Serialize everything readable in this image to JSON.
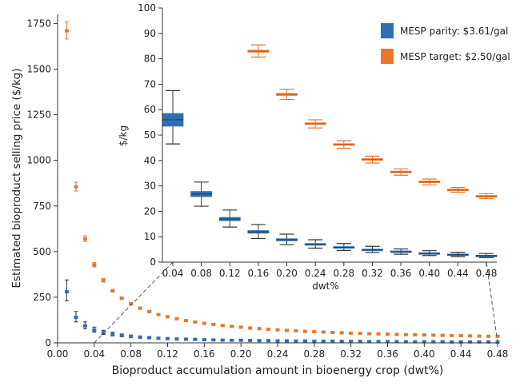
{
  "chart_data": [
    {
      "type": "scatter",
      "xlabel": "Bioproduct accumulation amount in bioenergy crop (dwt%)",
      "ylabel": "Estimated bioproduct selling price ($/kg)",
      "xlim": [
        0.0,
        0.48
      ],
      "ylim": [
        0,
        1800
      ],
      "xticks": [
        "0.00",
        "0.04",
        "0.08",
        "0.12",
        "0.16",
        "0.20",
        "0.24",
        "0.28",
        "0.32",
        "0.36",
        "0.40",
        "0.44",
        "0.48"
      ],
      "yticks": [
        "0",
        "250",
        "500",
        "750",
        "1000",
        "1250",
        "1500",
        "1750"
      ],
      "grid": false,
      "series": [
        {
          "name": "MESP parity: $3.61/gal",
          "color": "#2f6fb0",
          "x": [
            0.01,
            0.02,
            0.03,
            0.04,
            0.05,
            0.06,
            0.07,
            0.08,
            0.09,
            0.1,
            0.11,
            0.12,
            0.13,
            0.14,
            0.15,
            0.16,
            0.17,
            0.18,
            0.19,
            0.2,
            0.21,
            0.22,
            0.23,
            0.24,
            0.25,
            0.26,
            0.27,
            0.28,
            0.29,
            0.3,
            0.31,
            0.32,
            0.33,
            0.34,
            0.35,
            0.36,
            0.37,
            0.38,
            0.39,
            0.4,
            0.41,
            0.42,
            0.43,
            0.44,
            0.45,
            0.46,
            0.47,
            0.48
          ],
          "y": [
            280,
            140,
            93,
            70,
            56,
            47,
            40,
            35,
            31,
            28,
            25,
            23,
            21,
            20,
            19,
            17,
            16,
            15,
            14,
            14,
            13,
            12,
            12,
            11,
            11,
            10,
            10,
            9,
            9,
            9,
            8,
            8,
            8,
            7,
            7,
            7,
            7,
            6,
            6,
            6,
            6,
            6,
            5,
            5,
            5,
            5,
            5,
            4
          ],
          "err_low": [
            230,
            115,
            77,
            58,
            46,
            38,
            33,
            29,
            26,
            23,
            21,
            19,
            18,
            16,
            15,
            14,
            13,
            12,
            12,
            11,
            11,
            10,
            10,
            9,
            9,
            9,
            8,
            8,
            8,
            7,
            7,
            7,
            7,
            6,
            6,
            6,
            6,
            5,
            5,
            5,
            5,
            5,
            4,
            4,
            4,
            4,
            4,
            3
          ],
          "err_high": [
            345,
            172,
            115,
            86,
            69,
            58,
            49,
            43,
            38,
            35,
            31,
            29,
            27,
            25,
            23,
            22,
            20,
            19,
            18,
            17,
            16,
            16,
            15,
            14,
            14,
            13,
            13,
            12,
            12,
            11,
            11,
            11,
            10,
            10,
            10,
            9,
            9,
            9,
            9,
            8,
            8,
            8,
            8,
            8,
            7,
            7,
            7,
            7
          ]
        },
        {
          "name": "MESP target: $2.50/gal",
          "color": "#e8772b",
          "x": [
            0.01,
            0.02,
            0.03,
            0.04,
            0.05,
            0.06,
            0.07,
            0.08,
            0.09,
            0.1,
            0.11,
            0.12,
            0.13,
            0.14,
            0.15,
            0.16,
            0.17,
            0.18,
            0.19,
            0.2,
            0.21,
            0.22,
            0.23,
            0.24,
            0.25,
            0.26,
            0.27,
            0.28,
            0.29,
            0.3,
            0.31,
            0.32,
            0.33,
            0.34,
            0.35,
            0.36,
            0.37,
            0.38,
            0.39,
            0.4,
            0.41,
            0.42,
            0.43,
            0.44,
            0.45,
            0.46,
            0.47,
            0.48
          ],
          "y": [
            1710,
            855,
            570,
            428,
            342,
            285,
            244,
            214,
            190,
            171,
            155,
            143,
            132,
            122,
            114,
            107,
            101,
            95,
            90,
            86,
            81,
            78,
            74,
            71,
            68,
            66,
            63,
            61,
            59,
            57,
            55,
            53,
            52,
            50,
            49,
            48,
            46,
            45,
            44,
            43,
            42,
            41,
            40,
            39,
            38,
            37,
            36,
            36
          ],
          "err_low": [
            1665,
            832,
            555,
            416,
            333,
            278,
            238,
            208,
            185,
            167,
            151,
            139,
            128,
            119,
            111,
            104,
            98,
            93,
            88,
            83,
            79,
            76,
            72,
            69,
            67,
            64,
            62,
            59,
            57,
            56,
            54,
            52,
            50,
            49,
            48,
            46,
            45,
            44,
            43,
            42,
            41,
            40,
            39,
            38,
            37,
            36,
            35,
            35
          ],
          "err_high": [
            1760,
            880,
            587,
            440,
            352,
            293,
            251,
            220,
            196,
            176,
            160,
            147,
            135,
            126,
            117,
            110,
            104,
            98,
            93,
            88,
            84,
            80,
            77,
            73,
            70,
            68,
            65,
            63,
            61,
            59,
            57,
            55,
            53,
            52,
            50,
            49,
            48,
            46,
            45,
            44,
            43,
            42,
            41,
            40,
            39,
            38,
            37,
            37
          ]
        }
      ]
    },
    {
      "type": "box",
      "xlabel": "dwt%",
      "ylabel": "$/kg",
      "ylim": [
        0,
        100
      ],
      "yticks": [
        "0",
        "10",
        "20",
        "30",
        "40",
        "50",
        "60",
        "70",
        "80",
        "90",
        "100"
      ],
      "categories": [
        "0.04",
        "0.08",
        "0.12",
        "0.16",
        "0.20",
        "0.24",
        "0.28",
        "0.32",
        "0.36",
        "0.40",
        "0.44",
        "0.48"
      ],
      "grid": false,
      "legend_position": "top-right",
      "series": [
        {
          "name": "MESP parity: $3.61/gal",
          "color": "#2f6fb0",
          "boxes": [
            {
              "x": "0.04",
              "min": 46.5,
              "q1": 53.5,
              "median": 56,
              "q3": 58.5,
              "max": 67.5
            },
            {
              "x": "0.08",
              "min": 22,
              "q1": 25.8,
              "median": 26.8,
              "q3": 27.8,
              "max": 31.5
            },
            {
              "x": "0.12",
              "min": 13.8,
              "q1": 16.3,
              "median": 17,
              "q3": 17.6,
              "max": 20.5
            },
            {
              "x": "0.16",
              "min": 9.3,
              "q1": 11.4,
              "median": 11.9,
              "q3": 12.4,
              "max": 14.8
            },
            {
              "x": "0.20",
              "min": 6.9,
              "q1": 8.4,
              "median": 8.8,
              "q3": 9.2,
              "max": 11
            },
            {
              "x": "0.24",
              "min": 5.5,
              "q1": 6.7,
              "median": 7,
              "q3": 7.3,
              "max": 8.8
            },
            {
              "x": "0.28",
              "min": 4.6,
              "q1": 5.5,
              "median": 5.8,
              "q3": 6.1,
              "max": 7.3
            },
            {
              "x": "0.32",
              "min": 3.8,
              "q1": 4.7,
              "median": 4.9,
              "q3": 5.1,
              "max": 6.2
            },
            {
              "x": "0.36",
              "min": 3.1,
              "q1": 3.8,
              "median": 4.1,
              "q3": 4.4,
              "max": 5.2
            },
            {
              "x": "0.40",
              "min": 2.6,
              "q1": 3.2,
              "median": 3.4,
              "q3": 3.7,
              "max": 4.5
            },
            {
              "x": "0.44",
              "min": 2.2,
              "q1": 2.7,
              "median": 2.9,
              "q3": 3.2,
              "max": 3.9
            },
            {
              "x": "0.48",
              "min": 1.8,
              "q1": 2.3,
              "median": 2.5,
              "q3": 2.7,
              "max": 3.4
            }
          ]
        },
        {
          "name": "MESP target: $2.50/gal",
          "color": "#e8772b",
          "boxes": [
            {
              "x": "0.16",
              "min": 80.7,
              "q1": 82.6,
              "median": 83,
              "q3": 83.4,
              "max": 85.5
            },
            {
              "x": "0.20",
              "min": 64,
              "q1": 65.6,
              "median": 66,
              "q3": 66.4,
              "max": 68
            },
            {
              "x": "0.24",
              "min": 52.8,
              "q1": 54.2,
              "median": 54.5,
              "q3": 54.8,
              "max": 56
            },
            {
              "x": "0.28",
              "min": 44.8,
              "q1": 46,
              "median": 46.3,
              "q3": 46.6,
              "max": 47.8
            },
            {
              "x": "0.32",
              "min": 39,
              "q1": 40.1,
              "median": 40.4,
              "q3": 40.7,
              "max": 41.7
            },
            {
              "x": "0.36",
              "min": 34.2,
              "q1": 35.2,
              "median": 35.5,
              "q3": 35.8,
              "max": 36.7
            },
            {
              "x": "0.40",
              "min": 30.4,
              "q1": 31.3,
              "median": 31.6,
              "q3": 31.9,
              "max": 32.7
            },
            {
              "x": "0.44",
              "min": 27.5,
              "q1": 28.3,
              "median": 28.5,
              "q3": 28.7,
              "max": 29.4
            },
            {
              "x": "0.48",
              "min": 25,
              "q1": 25.8,
              "median": 26,
              "q3": 26.2,
              "max": 26.9
            }
          ]
        }
      ]
    }
  ]
}
